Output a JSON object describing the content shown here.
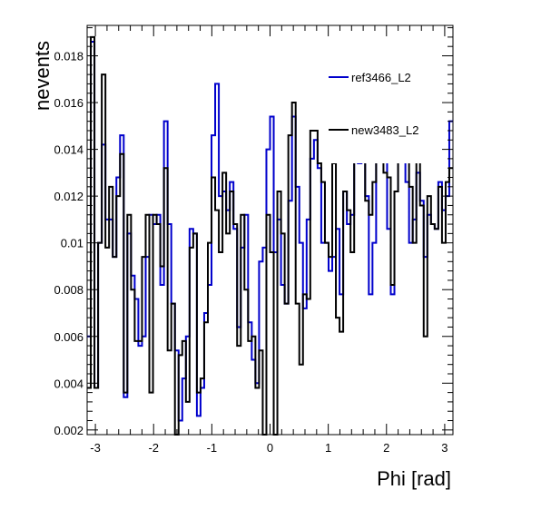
{
  "chart_data": {
    "type": "line",
    "title": "",
    "xlabel": "Phi [rad]",
    "ylabel": "nevents",
    "xlim": [
      -3.1416,
      3.1416
    ],
    "ylim": [
      0.0018,
      0.0193
    ],
    "grid": false,
    "legend_placement": "top-right",
    "x_ticks": [
      {
        "value": -3,
        "label": "-3"
      },
      {
        "value": -2,
        "label": "-2"
      },
      {
        "value": -1,
        "label": "-1"
      },
      {
        "value": 0,
        "label": "0"
      },
      {
        "value": 1,
        "label": "1"
      },
      {
        "value": 2,
        "label": "2"
      },
      {
        "value": 3,
        "label": "3"
      }
    ],
    "y_ticks": [
      {
        "value": 0.002,
        "label": "0.002"
      },
      {
        "value": 0.004,
        "label": "0.004"
      },
      {
        "value": 0.006,
        "label": "0.006"
      },
      {
        "value": 0.008,
        "label": "0.008"
      },
      {
        "value": 0.01,
        "label": "0.01"
      },
      {
        "value": 0.012,
        "label": "0.012"
      },
      {
        "value": 0.014,
        "label": "0.014"
      },
      {
        "value": 0.016,
        "label": "0.016"
      },
      {
        "value": 0.018,
        "label": "0.018"
      }
    ],
    "bin_count": 100,
    "series": [
      {
        "name": "ref3466_L2",
        "color": "#0000cc",
        "values": [
          0.006,
          0.0186,
          0.0038,
          0.01,
          0.0142,
          0.011,
          0.011,
          0.0094,
          0.0128,
          0.0146,
          0.0034,
          0.0104,
          0.0086,
          0.0076,
          0.0056,
          0.006,
          0.0094,
          0.0112,
          0.0108,
          0.0112,
          0.0082,
          0.0152,
          0.0108,
          0.0074,
          0.0054,
          0.0024,
          0.0042,
          0.006,
          0.0106,
          0.0104,
          0.0026,
          0.0038,
          0.007,
          0.0082,
          0.0146,
          0.0168,
          0.012,
          0.0122,
          0.0114,
          0.0126,
          0.0106,
          0.0064,
          0.0098,
          0.0112,
          0.0066,
          0.005,
          0.004,
          0.0092,
          0.0098,
          0.014,
          0.0154,
          0.0096,
          0.011,
          0.0082,
          0.0074,
          0.0118,
          0.0154,
          0.0124,
          0.01,
          0.0072,
          0.011,
          0.0136,
          0.0144,
          0.0132,
          0.01,
          0.01,
          0.0088,
          0.0094,
          0.0106,
          0.0078,
          0.0122,
          0.0108,
          0.0112,
          0.0136,
          0.0134,
          0.014,
          0.012,
          0.0078,
          0.01,
          0.0142,
          0.0138,
          0.014,
          0.0106,
          0.0078,
          0.0122,
          0.0146,
          0.0138,
          0.0126,
          0.01,
          0.011,
          0.013,
          0.0118,
          0.0094,
          0.0112,
          0.0108,
          0.0106,
          0.0126,
          0.0114,
          0.012,
          0.0152
        ]
      },
      {
        "name": "new3483_L2",
        "color": "#000000",
        "values": [
          0.0038,
          0.0188,
          0.0038,
          0.01,
          0.0172,
          0.0098,
          0.0124,
          0.0094,
          0.012,
          0.0138,
          0.0036,
          0.0112,
          0.008,
          0.0058,
          0.0058,
          0.0094,
          0.0112,
          0.0036,
          0.0112,
          0.0108,
          0.009,
          0.0132,
          0.0054,
          0.0074,
          0.0018,
          0.0052,
          0.0058,
          0.0032,
          0.0098,
          0.0104,
          0.0036,
          0.0042,
          0.0066,
          0.01,
          0.0128,
          0.0114,
          0.0096,
          0.013,
          0.0104,
          0.0122,
          0.0108,
          0.0056,
          0.0112,
          0.008,
          0.0058,
          0.006,
          0.0038,
          0.0054,
          0.0014,
          0.0112,
          0.0096,
          0.0016,
          0.0122,
          0.0104,
          0.0074,
          0.0146,
          0.016,
          0.0074,
          0.0048,
          0.0078,
          0.0076,
          0.0148,
          0.0148,
          0.0134,
          0.0126,
          0.01,
          0.0094,
          0.0134,
          0.0068,
          0.0062,
          0.0122,
          0.0114,
          0.0096,
          0.0144,
          0.0136,
          0.015,
          0.0118,
          0.0112,
          0.0126,
          0.0156,
          0.0144,
          0.013,
          0.0128,
          0.0082,
          0.0122,
          0.0152,
          0.0146,
          0.0136,
          0.0124,
          0.01,
          0.014,
          0.0116,
          0.006,
          0.012,
          0.0108,
          0.0106,
          0.0124,
          0.01,
          0.0126,
          0.0132
        ]
      }
    ]
  }
}
